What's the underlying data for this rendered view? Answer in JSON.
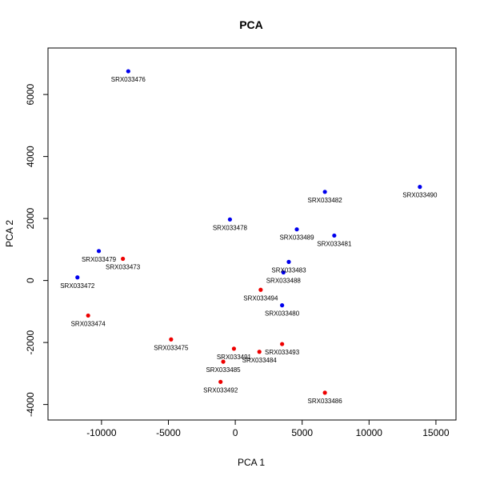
{
  "chart_data": {
    "type": "scatter",
    "title": "PCA",
    "xlabel": "PCA 1",
    "ylabel": "PCA 2",
    "xlim": [
      -14000,
      16500
    ],
    "ylim": [
      -4500,
      7500
    ],
    "xticks": [
      -10000,
      -5000,
      0,
      5000,
      10000,
      15000
    ],
    "yticks": [
      -4000,
      -2000,
      0,
      2000,
      4000,
      6000
    ],
    "xtick_labels": [
      "-10000",
      "-5000",
      "0",
      "5000",
      "10000",
      "15000"
    ],
    "ytick_labels": [
      "-4000",
      "-2000",
      "0",
      "2000",
      "4000",
      "6000"
    ],
    "grid": false,
    "colors": {
      "blue": "#0000ee",
      "red": "#ee0000"
    },
    "points": [
      {
        "label": "SRX033476",
        "x": -8000,
        "y": 6750,
        "color": "blue"
      },
      {
        "label": "SRX033490",
        "x": 13800,
        "y": 3020,
        "color": "blue"
      },
      {
        "label": "SRX033482",
        "x": 6700,
        "y": 2860,
        "color": "blue"
      },
      {
        "label": "SRX033478",
        "x": -400,
        "y": 1970,
        "color": "blue"
      },
      {
        "label": "SRX033489",
        "x": 4600,
        "y": 1650,
        "color": "blue"
      },
      {
        "label": "SRX033481",
        "x": 7400,
        "y": 1450,
        "color": "blue"
      },
      {
        "label": "SRX033479",
        "x": -10200,
        "y": 950,
        "color": "blue"
      },
      {
        "label": "SRX033473",
        "x": -8400,
        "y": 700,
        "color": "red"
      },
      {
        "label": "SRX033483",
        "x": 4000,
        "y": 600,
        "color": "blue"
      },
      {
        "label": "SRX033488",
        "x": 3600,
        "y": 260,
        "color": "blue"
      },
      {
        "label": "SRX033472",
        "x": -11800,
        "y": 100,
        "color": "blue"
      },
      {
        "label": "SRX033494",
        "x": 1900,
        "y": -300,
        "color": "red"
      },
      {
        "label": "SRX033480",
        "x": 3500,
        "y": -800,
        "color": "blue"
      },
      {
        "label": "SRX033474",
        "x": -11000,
        "y": -1130,
        "color": "red"
      },
      {
        "label": "SRX033475",
        "x": -4800,
        "y": -1900,
        "color": "red"
      },
      {
        "label": "SRX033493",
        "x": 3500,
        "y": -2050,
        "color": "red"
      },
      {
        "label": "SRX033491",
        "x": -100,
        "y": -2200,
        "color": "red"
      },
      {
        "label": "SRX033484",
        "x": 1800,
        "y": -2300,
        "color": "red"
      },
      {
        "label": "SRX033485",
        "x": -900,
        "y": -2620,
        "color": "red"
      },
      {
        "label": "SRX033492",
        "x": -1100,
        "y": -3270,
        "color": "red"
      },
      {
        "label": "SRX033486",
        "x": 6700,
        "y": -3620,
        "color": "red"
      }
    ]
  }
}
